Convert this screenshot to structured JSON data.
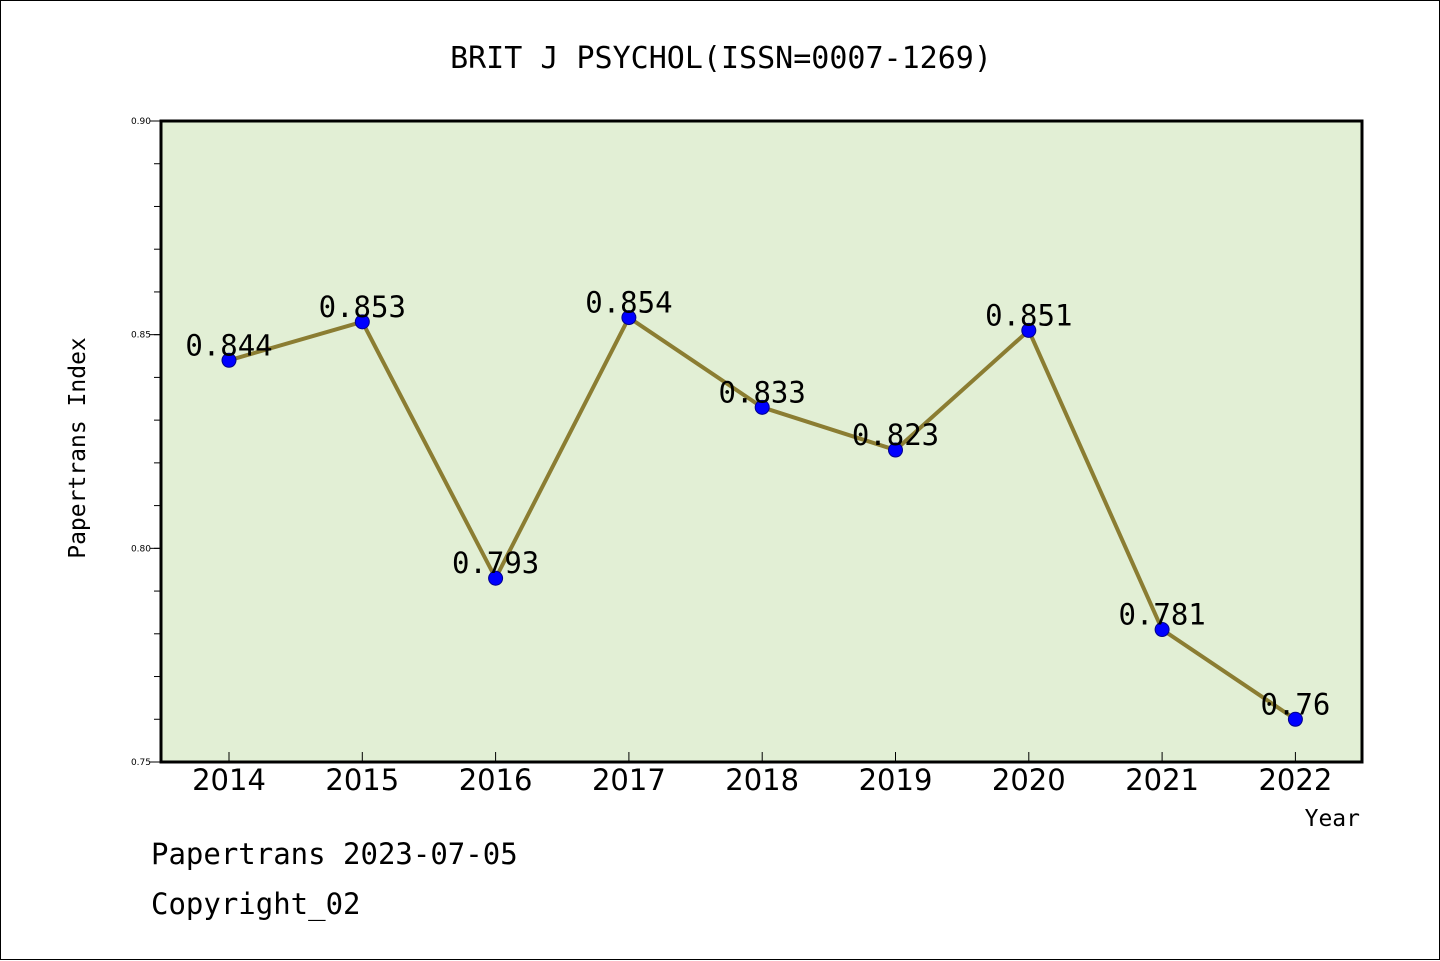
{
  "chart_data": {
    "type": "line",
    "title": "BRIT J PSYCHOL(ISSN=0007-1269)",
    "xlabel": "Year",
    "ylabel": "Papertrans Index",
    "categories": [
      "2014",
      "2015",
      "2016",
      "2017",
      "2018",
      "2019",
      "2020",
      "2021",
      "2022"
    ],
    "series": [
      {
        "values": [
          0.844,
          0.853,
          0.793,
          0.854,
          0.833,
          0.823,
          0.851,
          0.781,
          0.76
        ],
        "labels": [
          "0.844",
          "0.853",
          "0.793",
          "0.854",
          "0.833",
          "0.823",
          "0.851",
          "0.781",
          "0.76"
        ]
      }
    ],
    "ylim": [
      0.75,
      0.9
    ],
    "yticks": [
      0.75,
      0.8,
      0.85,
      0.9
    ],
    "ytick_labels": [
      "0.75",
      "0.80",
      "0.85",
      "0.90"
    ],
    "grid": false,
    "legend": "none",
    "colors": {
      "plot_background": "#e2efd5",
      "line": "#8b7d32",
      "marker": "#0000ff"
    }
  },
  "footer": {
    "line1": "Papertrans 2023-07-05",
    "line2": "Copyright_02"
  }
}
